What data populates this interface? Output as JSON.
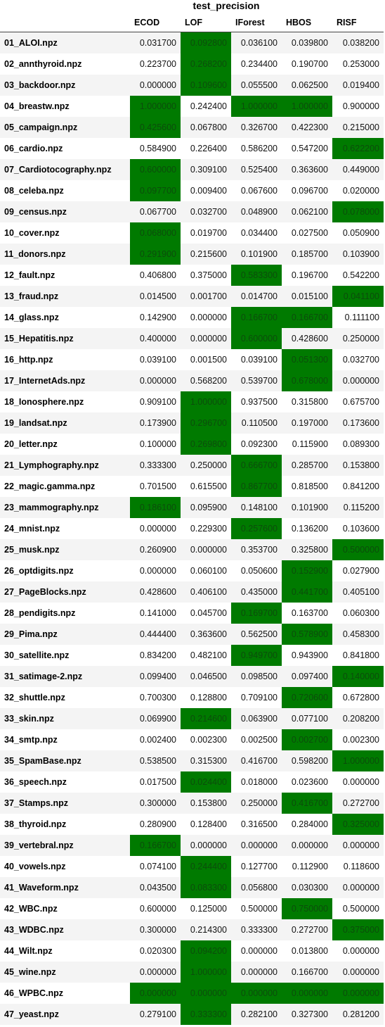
{
  "title": "test_precision",
  "columns": [
    "",
    "ECOD",
    "LOF",
    "IForest",
    "HBOS",
    "RISF"
  ],
  "highlight_color": "#007a00",
  "rows": [
    {
      "name": "01_ALOI.npz",
      "values": [
        "0.031700",
        "0.092800",
        "0.036100",
        "0.039800",
        "0.038200"
      ],
      "best": [
        1
      ]
    },
    {
      "name": "02_annthyroid.npz",
      "values": [
        "0.223700",
        "0.268200",
        "0.234400",
        "0.190700",
        "0.253000"
      ],
      "best": [
        1
      ]
    },
    {
      "name": "03_backdoor.npz",
      "values": [
        "0.000000",
        "0.109600",
        "0.055500",
        "0.062500",
        "0.019400"
      ],
      "best": [
        1
      ]
    },
    {
      "name": "04_breastw.npz",
      "values": [
        "1.000000",
        "0.242400",
        "1.000000",
        "1.000000",
        "0.900000"
      ],
      "best": [
        0,
        2,
        3
      ]
    },
    {
      "name": "05_campaign.npz",
      "values": [
        "0.425600",
        "0.067800",
        "0.326700",
        "0.422300",
        "0.215000"
      ],
      "best": [
        0
      ]
    },
    {
      "name": "06_cardio.npz",
      "values": [
        "0.584900",
        "0.226400",
        "0.586200",
        "0.547200",
        "0.622200"
      ],
      "best": [
        4
      ]
    },
    {
      "name": "07_Cardiotocography.npz",
      "values": [
        "0.600000",
        "0.309100",
        "0.525400",
        "0.363600",
        "0.449000"
      ],
      "best": [
        0
      ]
    },
    {
      "name": "08_celeba.npz",
      "values": [
        "0.097700",
        "0.009400",
        "0.067600",
        "0.096700",
        "0.020000"
      ],
      "best": [
        0
      ]
    },
    {
      "name": "09_census.npz",
      "values": [
        "0.067700",
        "0.032700",
        "0.048900",
        "0.062100",
        "0.078000"
      ],
      "best": [
        4
      ]
    },
    {
      "name": "10_cover.npz",
      "values": [
        "0.068000",
        "0.019700",
        "0.034400",
        "0.027500",
        "0.050900"
      ],
      "best": [
        0
      ]
    },
    {
      "name": "11_donors.npz",
      "values": [
        "0.291900",
        "0.215600",
        "0.101900",
        "0.185700",
        "0.103900"
      ],
      "best": [
        0
      ]
    },
    {
      "name": "12_fault.npz",
      "values": [
        "0.406800",
        "0.375000",
        "0.583300",
        "0.196700",
        "0.542200"
      ],
      "best": [
        2
      ]
    },
    {
      "name": "13_fraud.npz",
      "values": [
        "0.014500",
        "0.001700",
        "0.014700",
        "0.015100",
        "0.041100"
      ],
      "best": [
        4
      ]
    },
    {
      "name": "14_glass.npz",
      "values": [
        "0.142900",
        "0.000000",
        "0.166700",
        "0.166700",
        "0.111100"
      ],
      "best": [
        2,
        3
      ]
    },
    {
      "name": "15_Hepatitis.npz",
      "values": [
        "0.400000",
        "0.000000",
        "0.600000",
        "0.428600",
        "0.250000"
      ],
      "best": [
        2
      ]
    },
    {
      "name": "16_http.npz",
      "values": [
        "0.039100",
        "0.001500",
        "0.039100",
        "0.051300",
        "0.032700"
      ],
      "best": [
        3
      ]
    },
    {
      "name": "17_InternetAds.npz",
      "values": [
        "0.000000",
        "0.568200",
        "0.539700",
        "0.678000",
        "0.000000"
      ],
      "best": [
        3
      ]
    },
    {
      "name": "18_Ionosphere.npz",
      "values": [
        "0.909100",
        "1.000000",
        "0.937500",
        "0.315800",
        "0.675700"
      ],
      "best": [
        1
      ]
    },
    {
      "name": "19_landsat.npz",
      "values": [
        "0.173900",
        "0.296700",
        "0.110500",
        "0.197000",
        "0.173600"
      ],
      "best": [
        1
      ]
    },
    {
      "name": "20_letter.npz",
      "values": [
        "0.100000",
        "0.269800",
        "0.092300",
        "0.115900",
        "0.089300"
      ],
      "best": [
        1
      ]
    },
    {
      "name": "21_Lymphography.npz",
      "values": [
        "0.333300",
        "0.250000",
        "0.666700",
        "0.285700",
        "0.153800"
      ],
      "best": [
        2
      ]
    },
    {
      "name": "22_magic.gamma.npz",
      "values": [
        "0.701500",
        "0.615500",
        "0.867700",
        "0.818500",
        "0.841200"
      ],
      "best": [
        2
      ]
    },
    {
      "name": "23_mammography.npz",
      "values": [
        "0.186100",
        "0.095900",
        "0.148100",
        "0.101900",
        "0.115200"
      ],
      "best": [
        0
      ]
    },
    {
      "name": "24_mnist.npz",
      "values": [
        "0.000000",
        "0.229300",
        "0.257600",
        "0.136200",
        "0.103600"
      ],
      "best": [
        2
      ]
    },
    {
      "name": "25_musk.npz",
      "values": [
        "0.260900",
        "0.000000",
        "0.353700",
        "0.325800",
        "0.500000"
      ],
      "best": [
        4
      ]
    },
    {
      "name": "26_optdigits.npz",
      "values": [
        "0.000000",
        "0.060100",
        "0.050600",
        "0.152900",
        "0.027900"
      ],
      "best": [
        3
      ]
    },
    {
      "name": "27_PageBlocks.npz",
      "values": [
        "0.428600",
        "0.406100",
        "0.435000",
        "0.441700",
        "0.405100"
      ],
      "best": [
        3
      ]
    },
    {
      "name": "28_pendigits.npz",
      "values": [
        "0.141000",
        "0.045700",
        "0.169700",
        "0.163700",
        "0.060300"
      ],
      "best": [
        2
      ]
    },
    {
      "name": "29_Pima.npz",
      "values": [
        "0.444400",
        "0.363600",
        "0.562500",
        "0.578900",
        "0.458300"
      ],
      "best": [
        3
      ]
    },
    {
      "name": "30_satellite.npz",
      "values": [
        "0.834200",
        "0.482100",
        "0.949700",
        "0.943900",
        "0.841800"
      ],
      "best": [
        2
      ]
    },
    {
      "name": "31_satimage-2.npz",
      "values": [
        "0.099400",
        "0.046500",
        "0.098500",
        "0.097400",
        "0.140000"
      ],
      "best": [
        4
      ]
    },
    {
      "name": "32_shuttle.npz",
      "values": [
        "0.700300",
        "0.128800",
        "0.709100",
        "0.720600",
        "0.672800"
      ],
      "best": [
        3
      ]
    },
    {
      "name": "33_skin.npz",
      "values": [
        "0.069900",
        "0.214600",
        "0.063900",
        "0.077100",
        "0.208200"
      ],
      "best": [
        1
      ]
    },
    {
      "name": "34_smtp.npz",
      "values": [
        "0.002400",
        "0.002300",
        "0.002500",
        "0.002700",
        "0.002300"
      ],
      "best": [
        3
      ]
    },
    {
      "name": "35_SpamBase.npz",
      "values": [
        "0.538500",
        "0.315300",
        "0.416700",
        "0.598200",
        "1.000000"
      ],
      "best": [
        4
      ]
    },
    {
      "name": "36_speech.npz",
      "values": [
        "0.017500",
        "0.024400",
        "0.018000",
        "0.023600",
        "0.000000"
      ],
      "best": [
        1
      ]
    },
    {
      "name": "37_Stamps.npz",
      "values": [
        "0.300000",
        "0.153800",
        "0.250000",
        "0.416700",
        "0.272700"
      ],
      "best": [
        3
      ]
    },
    {
      "name": "38_thyroid.npz",
      "values": [
        "0.280900",
        "0.128400",
        "0.316500",
        "0.284000",
        "0.325000"
      ],
      "best": [
        4
      ]
    },
    {
      "name": "39_vertebral.npz",
      "values": [
        "0.166700",
        "0.000000",
        "0.000000",
        "0.000000",
        "0.000000"
      ],
      "best": [
        0
      ]
    },
    {
      "name": "40_vowels.npz",
      "values": [
        "0.074100",
        "0.244400",
        "0.127700",
        "0.112900",
        "0.118600"
      ],
      "best": [
        1
      ]
    },
    {
      "name": "41_Waveform.npz",
      "values": [
        "0.043500",
        "0.083300",
        "0.056800",
        "0.030300",
        "0.000000"
      ],
      "best": [
        1
      ]
    },
    {
      "name": "42_WBC.npz",
      "values": [
        "0.600000",
        "0.125000",
        "0.500000",
        "0.750000",
        "0.500000"
      ],
      "best": [
        3
      ]
    },
    {
      "name": "43_WDBC.npz",
      "values": [
        "0.300000",
        "0.214300",
        "0.333300",
        "0.272700",
        "0.375000"
      ],
      "best": [
        4
      ]
    },
    {
      "name": "44_Wilt.npz",
      "values": [
        "0.020300",
        "0.094200",
        "0.000000",
        "0.013800",
        "0.000000"
      ],
      "best": [
        1
      ]
    },
    {
      "name": "45_wine.npz",
      "values": [
        "0.000000",
        "1.000000",
        "0.000000",
        "0.166700",
        "0.000000"
      ],
      "best": [
        1
      ]
    },
    {
      "name": "46_WPBC.npz",
      "values": [
        "0.000000",
        "0.000000",
        "0.000000",
        "0.000000",
        "0.000000"
      ],
      "best": [
        0,
        1,
        2,
        3,
        4
      ]
    },
    {
      "name": "47_yeast.npz",
      "values": [
        "0.279100",
        "0.333300",
        "0.282100",
        "0.327300",
        "0.281200"
      ],
      "best": [
        1
      ]
    }
  ]
}
